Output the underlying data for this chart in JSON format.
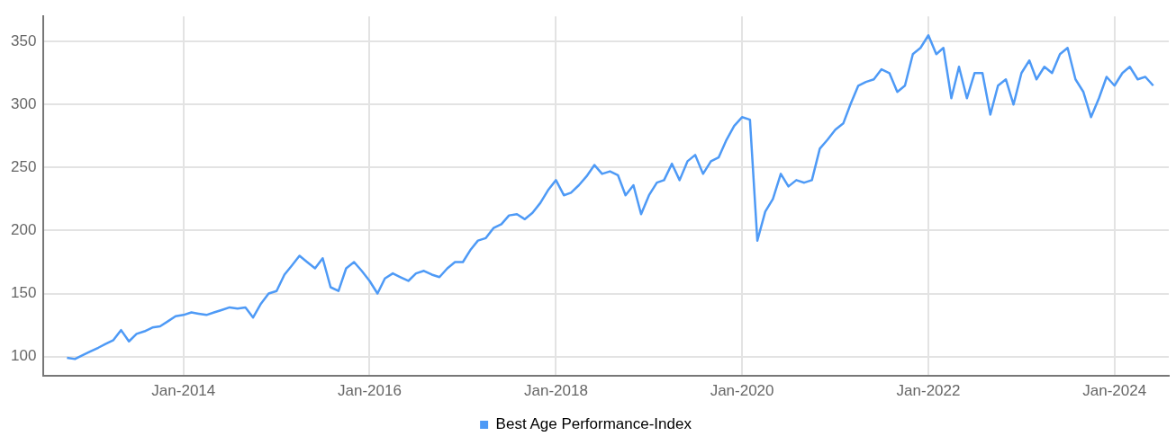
{
  "chart_data": {
    "type": "line",
    "x": [
      "2012-10",
      "2012-11",
      "2012-12",
      "2013-01",
      "2013-02",
      "2013-03",
      "2013-04",
      "2013-05",
      "2013-06",
      "2013-07",
      "2013-08",
      "2013-09",
      "2013-10",
      "2013-11",
      "2013-12",
      "2014-01",
      "2014-02",
      "2014-03",
      "2014-04",
      "2014-05",
      "2014-06",
      "2014-07",
      "2014-08",
      "2014-09",
      "2014-10",
      "2014-11",
      "2014-12",
      "2015-01",
      "2015-02",
      "2015-03",
      "2015-04",
      "2015-05",
      "2015-06",
      "2015-07",
      "2015-08",
      "2015-09",
      "2015-10",
      "2015-11",
      "2015-12",
      "2016-01",
      "2016-02",
      "2016-03",
      "2016-04",
      "2016-05",
      "2016-06",
      "2016-07",
      "2016-08",
      "2016-09",
      "2016-10",
      "2016-11",
      "2016-12",
      "2017-01",
      "2017-02",
      "2017-03",
      "2017-04",
      "2017-05",
      "2017-06",
      "2017-07",
      "2017-08",
      "2017-09",
      "2017-10",
      "2017-11",
      "2017-12",
      "2018-01",
      "2018-02",
      "2018-03",
      "2018-04",
      "2018-05",
      "2018-06",
      "2018-07",
      "2018-08",
      "2018-09",
      "2018-10",
      "2018-11",
      "2018-12",
      "2019-01",
      "2019-02",
      "2019-03",
      "2019-04",
      "2019-05",
      "2019-06",
      "2019-07",
      "2019-08",
      "2019-09",
      "2019-10",
      "2019-11",
      "2019-12",
      "2020-01",
      "2020-02",
      "2020-03",
      "2020-04",
      "2020-05",
      "2020-06",
      "2020-07",
      "2020-08",
      "2020-09",
      "2020-10",
      "2020-11",
      "2020-12",
      "2021-01",
      "2021-02",
      "2021-03",
      "2021-04",
      "2021-05",
      "2021-06",
      "2021-07",
      "2021-08",
      "2021-09",
      "2021-10",
      "2021-11",
      "2021-12",
      "2022-01",
      "2022-02",
      "2022-03",
      "2022-04",
      "2022-05",
      "2022-06",
      "2022-07",
      "2022-08",
      "2022-09",
      "2022-10",
      "2022-11",
      "2022-12",
      "2023-01",
      "2023-02",
      "2023-03",
      "2023-04",
      "2023-05",
      "2023-06",
      "2023-07",
      "2023-08",
      "2023-09",
      "2023-10",
      "2023-11",
      "2023-12",
      "2024-01",
      "2024-02",
      "2024-03",
      "2024-04",
      "2024-05",
      "2024-06"
    ],
    "series": [
      {
        "name": "Best Age Performance-Index",
        "color": "#4e9af6",
        "values": [
          99,
          98,
          101,
          104,
          107,
          110,
          113,
          121,
          112,
          118,
          120,
          123,
          124,
          128,
          132,
          133,
          135,
          134,
          133,
          135,
          137,
          139,
          138,
          139,
          131,
          142,
          150,
          152,
          165,
          172,
          180,
          175,
          170,
          178,
          155,
          152,
          170,
          175,
          168,
          160,
          150,
          162,
          166,
          163,
          160,
          166,
          168,
          165,
          163,
          170,
          175,
          175,
          185,
          192,
          194,
          202,
          205,
          212,
          213,
          209,
          214,
          222,
          232,
          240,
          228,
          230,
          236,
          243,
          252,
          245,
          247,
          244,
          228,
          236,
          213,
          228,
          238,
          240,
          253,
          240,
          255,
          260,
          245,
          255,
          258,
          272,
          283,
          290,
          288,
          192,
          215,
          225,
          245,
          235,
          240,
          238,
          240,
          265,
          272,
          280,
          285,
          300,
          315,
          318,
          320,
          328,
          325,
          310,
          315,
          340,
          345,
          355,
          340,
          345,
          305,
          330,
          305,
          325,
          325,
          292,
          315,
          320,
          300,
          325,
          335,
          320,
          330,
          325,
          340,
          345,
          320,
          310,
          290,
          305,
          322,
          315,
          325,
          330,
          320,
          322,
          315
        ]
      }
    ],
    "xlim": [
      "2012-07",
      "2024-08"
    ],
    "xticks": [
      {
        "value": "2014-01",
        "label": "Jan-2014"
      },
      {
        "value": "2016-01",
        "label": "Jan-2016"
      },
      {
        "value": "2018-01",
        "label": "Jan-2018"
      },
      {
        "value": "2020-01",
        "label": "Jan-2020"
      },
      {
        "value": "2022-01",
        "label": "Jan-2022"
      },
      {
        "value": "2024-01",
        "label": "Jan-2024"
      }
    ],
    "ylim": [
      85,
      370
    ],
    "yticks": [
      100,
      150,
      200,
      250,
      300,
      350
    ],
    "grid": true,
    "legend": "bottom",
    "marker": "none",
    "line_style": "solid"
  }
}
